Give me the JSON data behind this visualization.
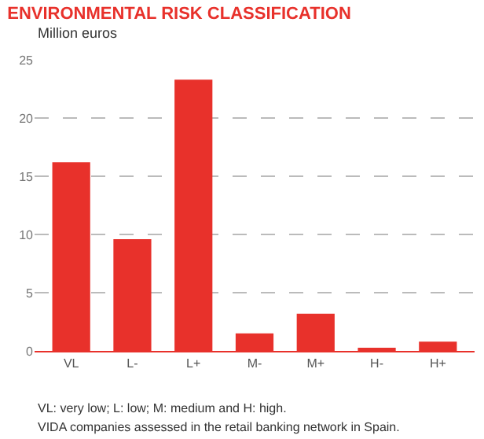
{
  "chart_data": {
    "type": "bar",
    "title": "ENVIRONMENTAL RISK CLASSIFICATION",
    "subtitle": "Million euros",
    "categories": [
      "VL",
      "L-",
      "L+",
      "M-",
      "M+",
      "H-",
      "H+"
    ],
    "values": [
      16.2,
      9.6,
      23.3,
      1.5,
      3.2,
      0.2,
      0.8
    ],
    "color": "#e8312b",
    "ylim": [
      0,
      25
    ],
    "yticks": [
      0,
      5,
      10,
      15,
      20,
      25
    ],
    "grid": "y",
    "annotations": [
      "VL: very low; L: low; M: medium and H: high.",
      "VIDA companies assessed in the retail banking network in Spain."
    ]
  }
}
